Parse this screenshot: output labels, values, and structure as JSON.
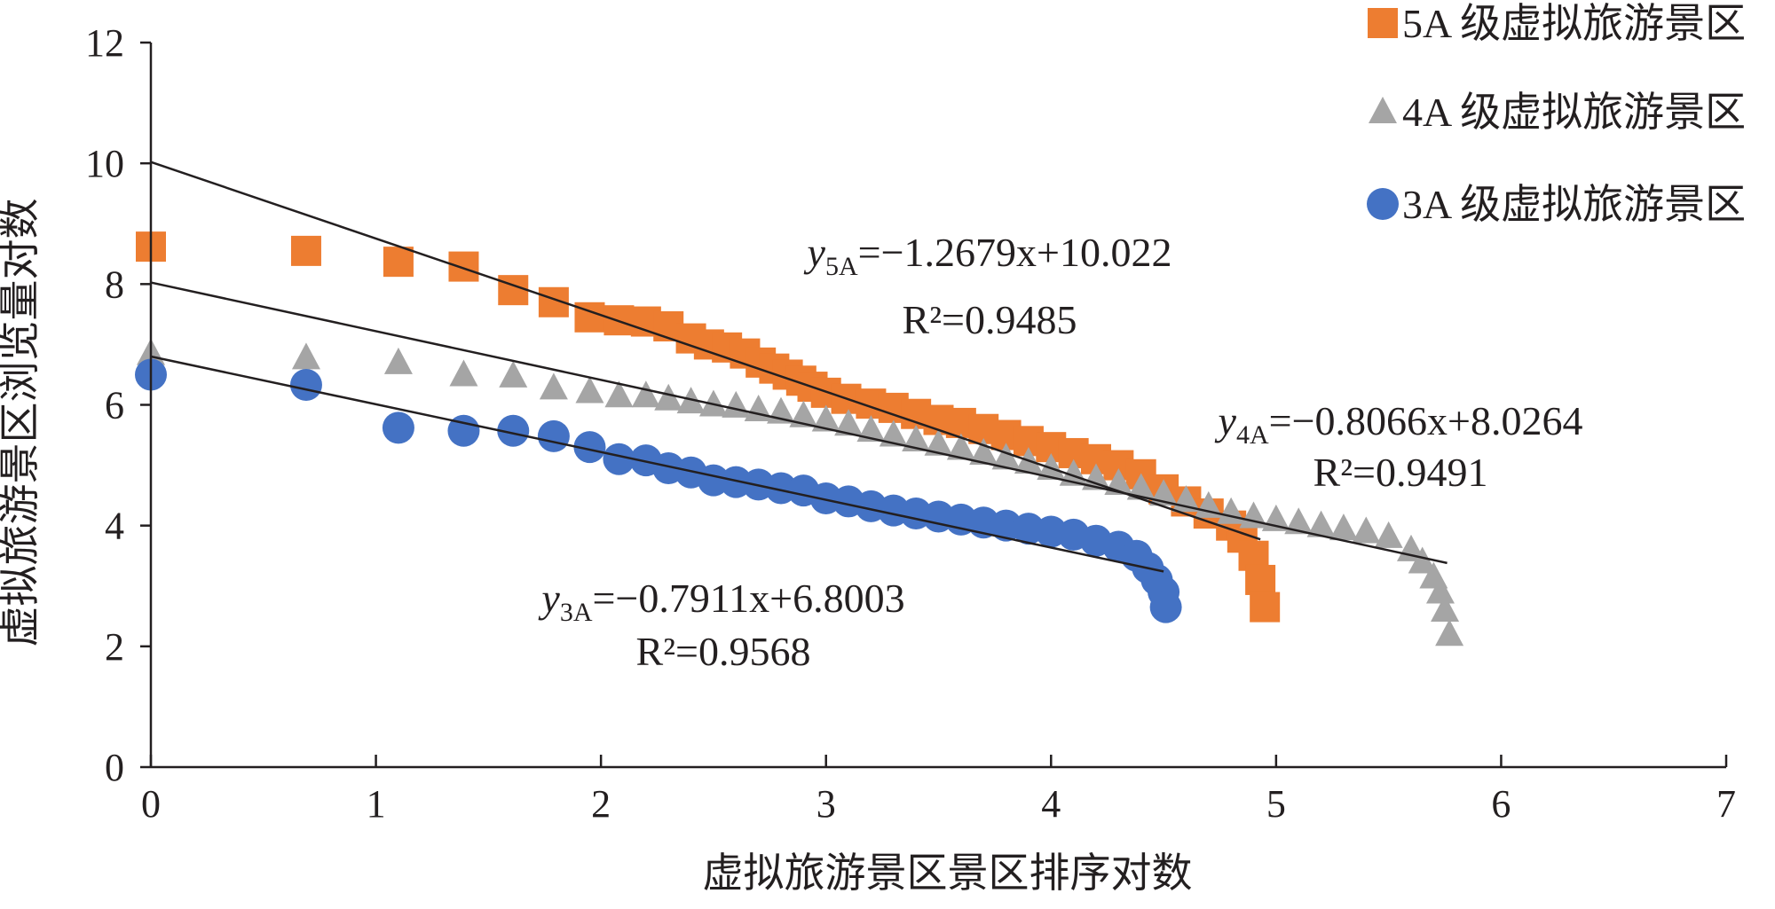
{
  "chart_data": {
    "type": "scatter",
    "xlabel": "虚拟旅游景区景区排序对数",
    "ylabel": "虚拟旅游景区浏览量对数",
    "xlim": [
      0,
      7
    ],
    "ylim": [
      0,
      12
    ],
    "xticks": [
      "0",
      "1",
      "2",
      "3",
      "4",
      "5",
      "6",
      "7"
    ],
    "yticks": [
      "0",
      "2",
      "4",
      "6",
      "8",
      "10",
      "12"
    ],
    "grid": false,
    "legend_position": "top-right",
    "series": [
      {
        "name": "5A 级虚拟旅游景区",
        "marker": "square",
        "color": "#ed7d31",
        "points": [
          [
            0,
            8.62
          ],
          [
            0.69,
            8.55
          ],
          [
            1.1,
            8.37
          ],
          [
            1.39,
            8.29
          ],
          [
            1.61,
            7.9
          ],
          [
            1.79,
            7.7
          ],
          [
            1.95,
            7.45
          ],
          [
            2.08,
            7.4
          ],
          [
            2.2,
            7.38
          ],
          [
            2.3,
            7.3
          ],
          [
            2.4,
            7.1
          ],
          [
            2.48,
            7.0
          ],
          [
            2.56,
            6.95
          ],
          [
            2.64,
            6.85
          ],
          [
            2.71,
            6.7
          ],
          [
            2.77,
            6.6
          ],
          [
            2.83,
            6.5
          ],
          [
            2.89,
            6.4
          ],
          [
            2.94,
            6.3
          ],
          [
            3.0,
            6.2
          ],
          [
            3.09,
            6.1
          ],
          [
            3.2,
            6.02
          ],
          [
            3.3,
            5.95
          ],
          [
            3.4,
            5.85
          ],
          [
            3.5,
            5.75
          ],
          [
            3.6,
            5.7
          ],
          [
            3.7,
            5.6
          ],
          [
            3.8,
            5.5
          ],
          [
            3.9,
            5.4
          ],
          [
            4.0,
            5.3
          ],
          [
            4.1,
            5.2
          ],
          [
            4.2,
            5.1
          ],
          [
            4.3,
            5.0
          ],
          [
            4.4,
            4.85
          ],
          [
            4.5,
            4.6
          ],
          [
            4.6,
            4.4
          ],
          [
            4.7,
            4.2
          ],
          [
            4.8,
            4.0
          ],
          [
            4.85,
            3.8
          ],
          [
            4.9,
            3.5
          ],
          [
            4.93,
            3.1
          ],
          [
            4.95,
            2.65
          ]
        ],
        "fit": {
          "slope": -1.2679,
          "intercept": 10.022,
          "x_range": [
            0,
            4.93
          ],
          "r2": 0.9485
        },
        "equation": {
          "y_label": "y",
          "subscript": "5A",
          "rhs": "=−1.2679x+10.022",
          "r2_text": "R²=0.9485"
        }
      },
      {
        "name": "4A 级虚拟旅游景区",
        "marker": "triangle",
        "color": "#a5a5a5",
        "points": [
          [
            0,
            6.85
          ],
          [
            0.69,
            6.78
          ],
          [
            1.1,
            6.7
          ],
          [
            1.39,
            6.5
          ],
          [
            1.61,
            6.48
          ],
          [
            1.79,
            6.28
          ],
          [
            1.95,
            6.22
          ],
          [
            2.08,
            6.15
          ],
          [
            2.2,
            6.15
          ],
          [
            2.3,
            6.1
          ],
          [
            2.4,
            6.05
          ],
          [
            2.5,
            6.0
          ],
          [
            2.6,
            5.98
          ],
          [
            2.7,
            5.92
          ],
          [
            2.8,
            5.88
          ],
          [
            2.9,
            5.82
          ],
          [
            3.0,
            5.75
          ],
          [
            3.1,
            5.68
          ],
          [
            3.2,
            5.58
          ],
          [
            3.3,
            5.5
          ],
          [
            3.4,
            5.42
          ],
          [
            3.5,
            5.35
          ],
          [
            3.6,
            5.28
          ],
          [
            3.7,
            5.2
          ],
          [
            3.8,
            5.12
          ],
          [
            3.9,
            5.05
          ],
          [
            4.0,
            4.95
          ],
          [
            4.1,
            4.85
          ],
          [
            4.2,
            4.78
          ],
          [
            4.3,
            4.7
          ],
          [
            4.4,
            4.62
          ],
          [
            4.5,
            4.52
          ],
          [
            4.6,
            4.42
          ],
          [
            4.7,
            4.32
          ],
          [
            4.8,
            4.22
          ],
          [
            4.9,
            4.15
          ],
          [
            5.0,
            4.1
          ],
          [
            5.1,
            4.05
          ],
          [
            5.2,
            4.0
          ],
          [
            5.3,
            3.95
          ],
          [
            5.4,
            3.9
          ],
          [
            5.5,
            3.82
          ],
          [
            5.6,
            3.6
          ],
          [
            5.65,
            3.4
          ],
          [
            5.7,
            3.15
          ],
          [
            5.73,
            2.9
          ],
          [
            5.75,
            2.6
          ],
          [
            5.77,
            2.2
          ]
        ],
        "fit": {
          "slope": -0.8066,
          "intercept": 8.0264,
          "x_range": [
            0,
            5.76
          ],
          "r2": 0.9491
        },
        "equation": {
          "y_label": "y",
          "subscript": "4A",
          "rhs": "=−0.8066x+8.0264",
          "r2_text": "R²=0.9491"
        }
      },
      {
        "name": "3A 级虚拟旅游景区",
        "marker": "circle",
        "color": "#4472c4",
        "points": [
          [
            0,
            6.5
          ],
          [
            0.69,
            6.33
          ],
          [
            1.1,
            5.62
          ],
          [
            1.39,
            5.57
          ],
          [
            1.61,
            5.57
          ],
          [
            1.79,
            5.48
          ],
          [
            1.95,
            5.3
          ],
          [
            2.08,
            5.1
          ],
          [
            2.2,
            5.08
          ],
          [
            2.3,
            4.95
          ],
          [
            2.4,
            4.88
          ],
          [
            2.5,
            4.75
          ],
          [
            2.6,
            4.72
          ],
          [
            2.7,
            4.68
          ],
          [
            2.8,
            4.62
          ],
          [
            2.9,
            4.58
          ],
          [
            3.0,
            4.45
          ],
          [
            3.1,
            4.4
          ],
          [
            3.2,
            4.32
          ],
          [
            3.3,
            4.25
          ],
          [
            3.4,
            4.2
          ],
          [
            3.5,
            4.15
          ],
          [
            3.6,
            4.1
          ],
          [
            3.7,
            4.05
          ],
          [
            3.8,
            4.0
          ],
          [
            3.9,
            3.95
          ],
          [
            4.0,
            3.9
          ],
          [
            4.1,
            3.85
          ],
          [
            4.2,
            3.75
          ],
          [
            4.3,
            3.65
          ],
          [
            4.38,
            3.5
          ],
          [
            4.43,
            3.3
          ],
          [
            4.47,
            3.1
          ],
          [
            4.5,
            2.9
          ],
          [
            4.51,
            2.65
          ]
        ],
        "fit": {
          "slope": -0.7911,
          "intercept": 6.8003,
          "x_range": [
            0,
            4.5
          ],
          "r2": 0.9568
        },
        "equation": {
          "y_label": "y",
          "subscript": "3A",
          "rhs": "=−0.7911x+6.8003",
          "r2_text": "R²=0.9568"
        }
      }
    ]
  }
}
